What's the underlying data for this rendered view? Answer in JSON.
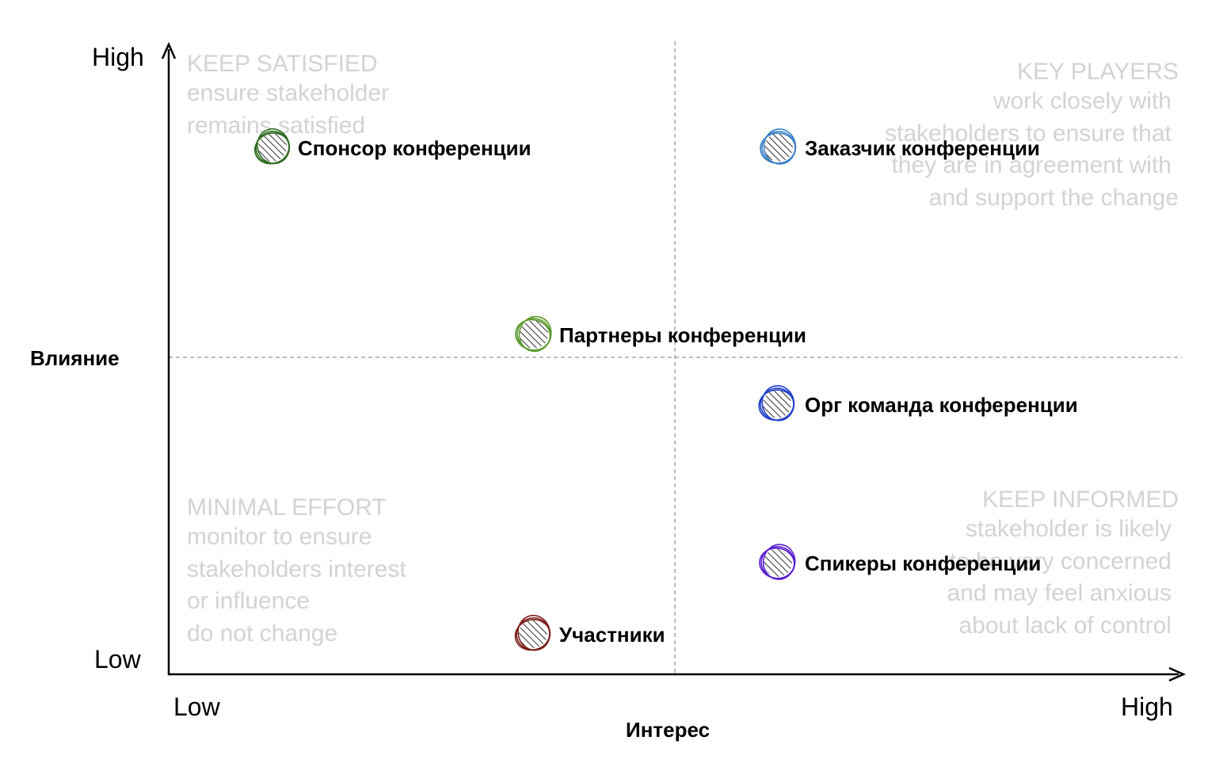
{
  "y_axis": {
    "title": "Влияние",
    "high_label": "High",
    "low_label": "Low"
  },
  "x_axis": {
    "title": "Интерес",
    "high_label": "High",
    "low_label": "Low"
  },
  "quadrants": {
    "keep_satisfied": {
      "title": "KEEP SATISFIED",
      "lines": [
        "ensure stakeholder",
        "remains satisfied"
      ]
    },
    "key_players": {
      "title": "KEY PLAYERS",
      "lines": [
        "work closely with",
        "stakeholders to ensure that",
        "they are in agreement with",
        "and support the change"
      ]
    },
    "minimal_effort": {
      "title": "MINIMAL EFFORT",
      "lines": [
        "monitor to ensure",
        "stakeholders interest",
        "or influence",
        "do not change"
      ]
    },
    "keep_informed": {
      "title": "KEEP INFORMED",
      "lines": [
        "stakeholder is likely",
        "to be very concerned",
        "and may feel anxious",
        "about lack of control"
      ]
    }
  },
  "stakeholders": [
    {
      "label": "Спонсор конференции",
      "color": "#2e6b1f"
    },
    {
      "label": "Заказчик конференции",
      "color": "#3b82c4"
    },
    {
      "label": "Партнеры конференции",
      "color": "#5a9a2e"
    },
    {
      "label": "Орг команда конференции",
      "color": "#1f3fc8"
    },
    {
      "label": "Спикеры конференции",
      "color": "#5a1fd1"
    },
    {
      "label": "Участники",
      "color": "#7a1f1a"
    }
  ],
  "colors": {
    "quadrant_text": "#d3d3d3",
    "axis": "#000000",
    "divider": "#a6a6a6"
  }
}
